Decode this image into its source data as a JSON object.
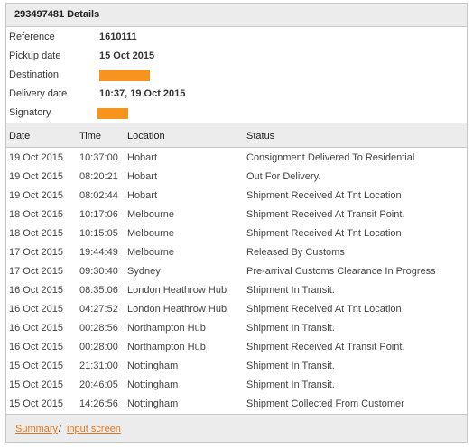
{
  "title": "293497481 Details",
  "details": [
    {
      "label": "Reference",
      "value": "1610111",
      "redacted": false
    },
    {
      "label": "Pickup date",
      "value": "15 Oct 2015",
      "redacted": false
    },
    {
      "label": "Destination",
      "value": "",
      "redacted": true
    },
    {
      "label": "Delivery date",
      "value": "10:37, 19 Oct 2015",
      "redacted": false
    },
    {
      "label": "Signatory",
      "value": "",
      "redacted": true
    }
  ],
  "redaction_color": "#f7941d",
  "columns": {
    "date": "Date",
    "time": "Time",
    "location": "Location",
    "status": "Status"
  },
  "events": [
    {
      "date": "19 Oct 2015",
      "time": "10:37:00",
      "location": "Hobart",
      "status": "Consignment Delivered To Residential"
    },
    {
      "date": "19 Oct 2015",
      "time": "08:20:21",
      "location": "Hobart",
      "status": "Out For Delivery."
    },
    {
      "date": "19 Oct 2015",
      "time": "08:02:44",
      "location": "Hobart",
      "status": "Shipment Received At Tnt Location"
    },
    {
      "date": "18 Oct 2015",
      "time": "10:17:06",
      "location": "Melbourne",
      "status": "Shipment Received At Transit Point."
    },
    {
      "date": "18 Oct 2015",
      "time": "10:15:05",
      "location": "Melbourne",
      "status": "Shipment Received At Tnt Location"
    },
    {
      "date": "17 Oct 2015",
      "time": "19:44:49",
      "location": "Melbourne",
      "status": "Released By Customs"
    },
    {
      "date": "17 Oct 2015",
      "time": "09:30:40",
      "location": "Sydney",
      "status": "Pre-arrival Customs Clearance In Progress"
    },
    {
      "date": "16 Oct 2015",
      "time": "08:35:06",
      "location": "London Heathrow Hub",
      "status": "Shipment In Transit."
    },
    {
      "date": "16 Oct 2015",
      "time": "04:27:52",
      "location": "London Heathrow Hub",
      "status": "Shipment Received At Tnt Location"
    },
    {
      "date": "16 Oct 2015",
      "time": "00:28:56",
      "location": "Northampton Hub",
      "status": "Shipment In Transit."
    },
    {
      "date": "16 Oct 2015",
      "time": "00:28:00",
      "location": "Northampton Hub",
      "status": "Shipment Received At Transit Point."
    },
    {
      "date": "15 Oct 2015",
      "time": "21:31:00",
      "location": "Nottingham",
      "status": "Shipment In Transit."
    },
    {
      "date": "15 Oct 2015",
      "time": "20:46:05",
      "location": "Nottingham",
      "status": "Shipment In Transit."
    },
    {
      "date": "15 Oct 2015",
      "time": "14:26:56",
      "location": "Nottingham",
      "status": "Shipment Collected From Customer"
    }
  ],
  "footer": {
    "summary_link": "Summary",
    "separator": "/",
    "input_link": "input screen"
  },
  "link_color": "#e8751a"
}
